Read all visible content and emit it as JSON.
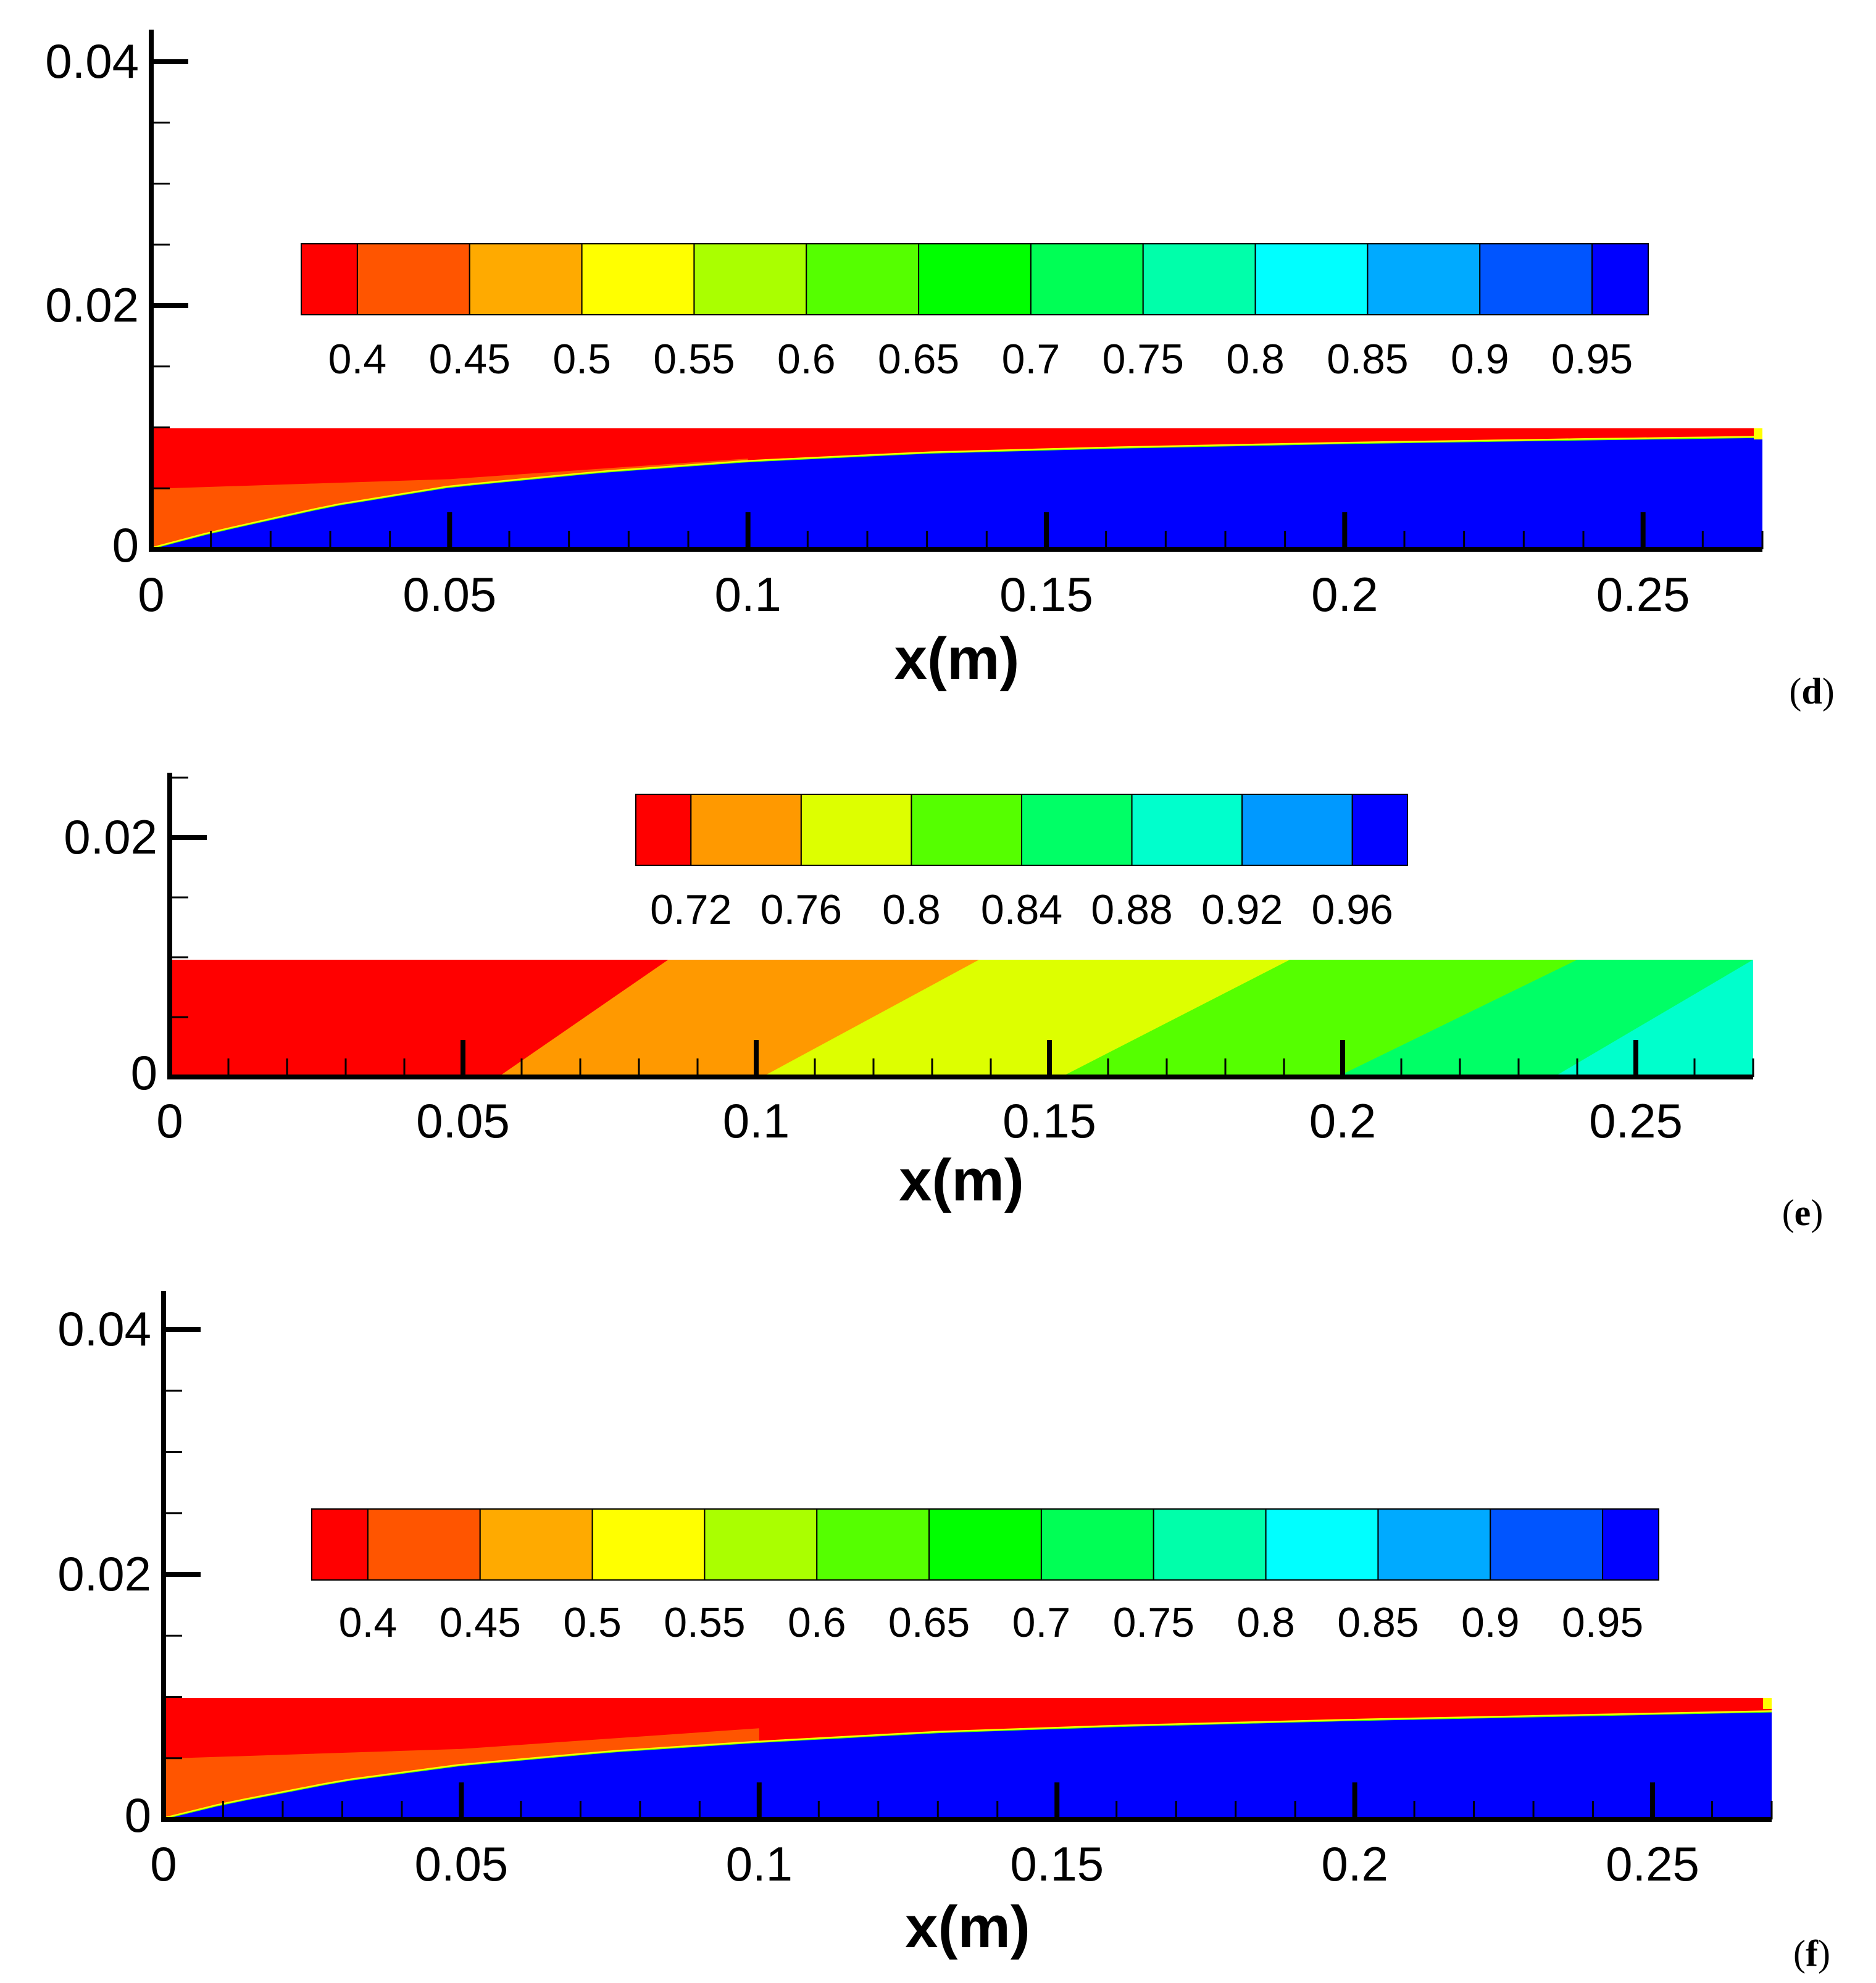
{
  "chart_data": [
    {
      "type": "heatmap",
      "panel_label": "d",
      "xlabel": "x(m)",
      "ylabel": "",
      "xlim": [
        0,
        0.27
      ],
      "ylim": [
        0,
        0.04
      ],
      "x_ticks": [
        "0",
        "0.05",
        "0.1",
        "0.15",
        "0.2",
        "0.25"
      ],
      "y_ticks": [
        "0",
        "0.02",
        "0.04"
      ],
      "domain_height": 0.01,
      "legend": {
        "levels": [
          "0.4",
          "0.45",
          "0.5",
          "0.55",
          "0.6",
          "0.65",
          "0.7",
          "0.75",
          "0.8",
          "0.85",
          "0.9",
          "0.95"
        ],
        "colors": [
          "#ff0000",
          "#ff5500",
          "#ffaa00",
          "#ffff00",
          "#aaff00",
          "#55ff00",
          "#00ff00",
          "#00ff55",
          "#00ffaa",
          "#00ffff",
          "#00aaff",
          "#0055ff",
          "#0000ff"
        ]
      },
      "field": {
        "pattern": "boundary-layer",
        "interface_x": [
          0,
          0.01,
          0.03,
          0.05,
          0.075,
          0.1,
          0.13,
          0.16,
          0.2,
          0.24,
          0.27
        ],
        "interface_y": [
          0,
          0.0013,
          0.0035,
          0.0051,
          0.0063,
          0.0072,
          0.0079,
          0.0083,
          0.0087,
          0.009,
          0.0092
        ]
      }
    },
    {
      "type": "heatmap",
      "panel_label": "e",
      "xlabel": "x(m)",
      "ylabel": "",
      "xlim": [
        0,
        0.27
      ],
      "ylim": [
        0,
        0.025
      ],
      "x_ticks": [
        "0",
        "0.05",
        "0.1",
        "0.15",
        "0.2",
        "0.25"
      ],
      "y_ticks": [
        "0",
        "0.02"
      ],
      "domain_height": 0.01,
      "legend": {
        "levels": [
          "0.72",
          "0.76",
          "0.8",
          "0.84",
          "0.88",
          "0.92",
          "0.96"
        ],
        "colors": [
          "#ff0000",
          "#ff9900",
          "#ddff00",
          "#55ff00",
          "#00ff66",
          "#00ffcc",
          "#0099ff",
          "#0000ff"
        ]
      },
      "field": {
        "pattern": "diagonal-bands",
        "bands": [
          {
            "x_bottom": 0.056,
            "x_top": 0.085
          },
          {
            "x_bottom": 0.101,
            "x_top": 0.138
          },
          {
            "x_bottom": 0.152,
            "x_top": 0.191
          },
          {
            "x_bottom": 0.199,
            "x_top": 0.24
          },
          {
            "x_bottom": 0.236,
            "x_top": 0.27
          }
        ]
      }
    },
    {
      "type": "heatmap",
      "panel_label": "f",
      "xlabel": "x(m)",
      "ylabel": "",
      "xlim": [
        0,
        0.27
      ],
      "ylim": [
        0,
        0.04
      ],
      "x_ticks": [
        "0",
        "0.05",
        "0.1",
        "0.15",
        "0.2",
        "0.25"
      ],
      "y_ticks": [
        "0",
        "0.02",
        "0.04"
      ],
      "domain_height": 0.01,
      "legend": {
        "levels": [
          "0.4",
          "0.45",
          "0.5",
          "0.55",
          "0.6",
          "0.65",
          "0.7",
          "0.75",
          "0.8",
          "0.85",
          "0.9",
          "0.95"
        ],
        "colors": [
          "#ff0000",
          "#ff5500",
          "#ffaa00",
          "#ffff00",
          "#aaff00",
          "#55ff00",
          "#00ff00",
          "#00ff55",
          "#00ffaa",
          "#00ffff",
          "#00aaff",
          "#0055ff",
          "#0000ff"
        ]
      },
      "field": {
        "pattern": "boundary-layer",
        "interface_x": [
          0,
          0.01,
          0.03,
          0.05,
          0.075,
          0.1,
          0.13,
          0.16,
          0.2,
          0.24,
          0.27
        ],
        "interface_y": [
          0,
          0.0012,
          0.0031,
          0.0044,
          0.0055,
          0.0063,
          0.0071,
          0.0076,
          0.0081,
          0.0085,
          0.0088
        ]
      }
    }
  ]
}
